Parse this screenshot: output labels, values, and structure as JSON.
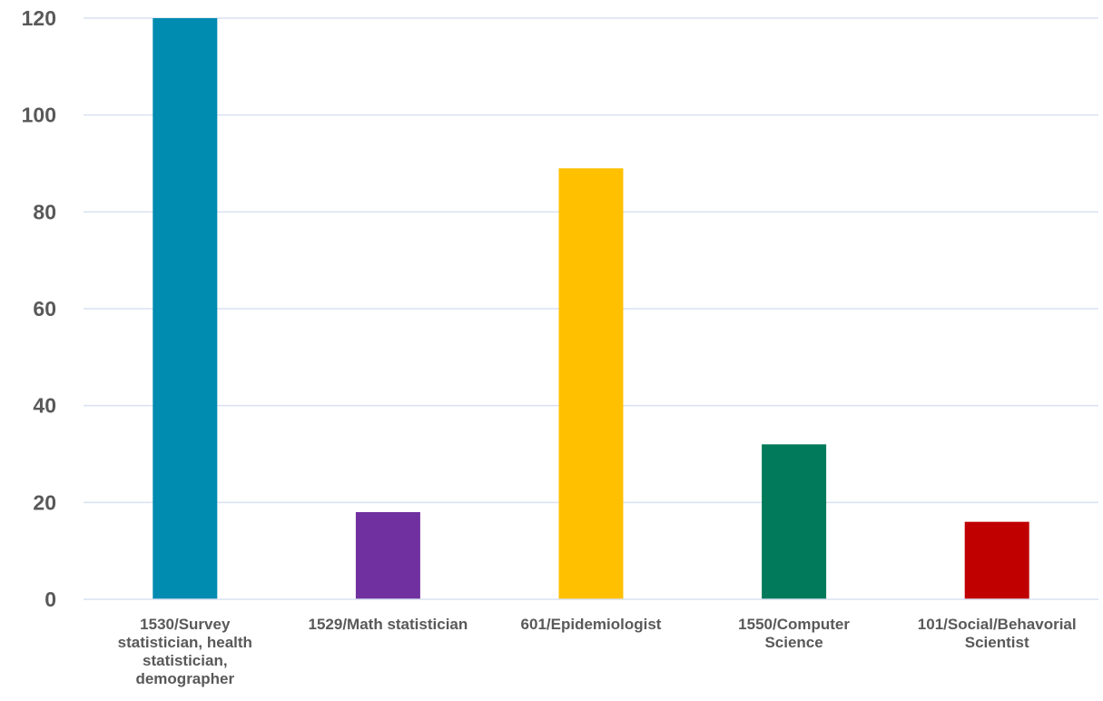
{
  "chart_data": {
    "type": "bar",
    "categories": [
      [
        "1530/Survey",
        "statistician, health",
        "statistician,",
        "demographer"
      ],
      [
        "1529/Math statistician"
      ],
      [
        "601/Epidemiologist"
      ],
      [
        "1550/Computer",
        "Science"
      ],
      [
        "101/Social/Behavorial",
        "Scientist"
      ]
    ],
    "values": [
      120,
      18,
      89,
      32,
      16
    ],
    "colors": [
      "#008BB0",
      "#7030A0",
      "#FFC000",
      "#007A5A",
      "#C00000"
    ],
    "ylim": [
      0,
      120
    ],
    "yticks": [
      0,
      20,
      40,
      60,
      80,
      100,
      120
    ],
    "grid": true,
    "gridColor": "#D9E1F2",
    "title": "",
    "xlabel": "",
    "ylabel": ""
  }
}
